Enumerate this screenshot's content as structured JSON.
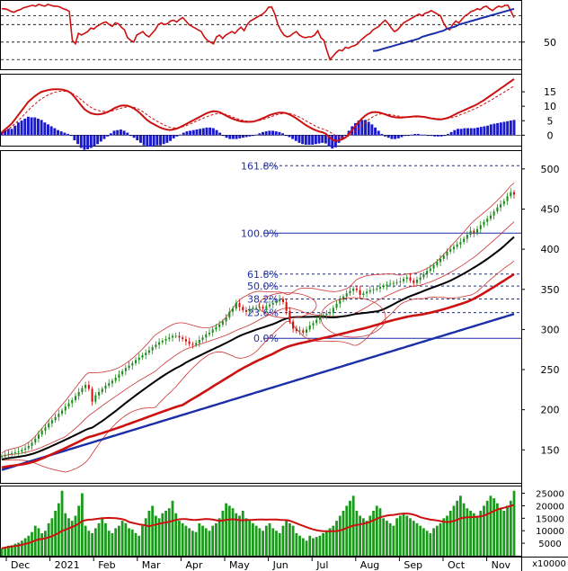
{
  "chart_data": [
    {
      "panel": "rsi",
      "type": "line",
      "ytick_labels": [
        "50"
      ],
      "ytick_values": [
        50
      ],
      "ylim": [
        20,
        95
      ],
      "reference_levels": [
        80,
        70,
        50,
        30
      ],
      "series": [
        {
          "values": [
            88,
            88,
            87,
            85,
            84,
            86,
            87,
            89,
            90,
            91,
            92,
            91,
            93,
            92,
            91,
            93,
            92,
            91,
            91,
            90,
            88,
            87,
            85,
            52,
            48,
            60,
            58,
            60,
            62,
            66,
            65,
            68,
            70,
            72,
            73,
            70,
            68,
            72,
            71,
            67,
            64,
            55,
            52,
            50,
            58,
            60,
            62,
            58,
            56,
            60,
            64,
            70,
            72,
            70,
            71,
            74,
            75,
            73,
            76,
            78,
            74,
            70,
            68,
            66,
            64,
            62,
            56,
            52,
            50,
            48,
            56,
            58,
            54,
            58,
            60,
            62,
            60,
            64,
            67,
            63,
            70,
            74,
            76,
            78,
            80,
            82,
            85,
            90,
            90,
            82,
            70,
            63,
            58,
            56,
            57,
            60,
            62,
            58,
            56,
            55,
            56,
            56,
            58,
            63,
            55,
            52,
            40,
            30,
            34,
            38,
            41,
            40,
            44,
            43,
            45,
            46,
            48,
            52,
            55,
            58,
            60,
            64,
            66,
            68,
            72,
            75,
            71,
            66,
            62,
            64,
            68,
            72,
            74,
            76,
            78,
            80,
            82,
            80,
            83,
            84,
            86,
            84,
            82,
            80,
            72,
            66,
            64,
            70,
            74,
            72,
            76,
            80,
            82,
            85,
            86,
            88,
            87,
            90,
            91,
            88,
            86,
            89,
            91,
            90,
            92,
            92,
            85,
            78
          ]
        },
        {
          "values": [
            40,
            40,
            41,
            42,
            43,
            44,
            45,
            46,
            47,
            48,
            49,
            50,
            51,
            52,
            53,
            54,
            56,
            57,
            58,
            59,
            60,
            61,
            62,
            63,
            65,
            66,
            67,
            68,
            70,
            71,
            72,
            73,
            74,
            75,
            76,
            77,
            78,
            79,
            80,
            81,
            82,
            83,
            84,
            85,
            86,
            87,
            88
          ],
          "x_start": 121
        }
      ]
    },
    {
      "panel": "macd",
      "type": "line",
      "ytick_labels": [
        "15",
        "10",
        "5",
        "0"
      ],
      "ytick_values": [
        15,
        10,
        5,
        0
      ],
      "ylim": [
        -3,
        20
      ],
      "zero_line": 0,
      "series": [
        {
          "name_shown": false,
          "values": [
            1,
            2,
            3,
            4,
            5.5,
            7,
            8.5,
            10,
            11.5,
            12.5,
            13.5,
            14.3,
            15,
            15.3,
            15.6,
            15.8,
            15.9,
            15.9,
            15.8,
            15.6,
            15.2,
            14.5,
            13.2,
            11.8,
            10.3,
            9.0,
            8.2,
            7.6,
            7.3,
            7.2,
            7.3,
            7.6,
            8.0,
            8.6,
            9.3,
            9.8,
            10.2,
            10.3,
            10.2,
            9.8,
            9.2,
            8.4,
            7.4,
            6.3,
            5.2,
            4.4,
            3.8,
            3.2,
            2.6,
            2.2,
            1.9,
            1.8,
            2.0,
            2.3,
            2.8,
            3.4,
            4.0,
            4.6,
            5.2,
            5.8,
            6.4,
            7.0,
            7.6,
            8.0,
            8.3,
            8.2,
            7.9,
            7.3,
            6.7,
            6.1,
            5.6,
            5.2,
            4.9,
            4.7,
            4.6,
            4.6,
            4.7,
            5.0,
            5.4,
            5.9,
            6.4,
            6.9,
            7.3,
            7.6,
            7.8,
            7.8,
            7.6,
            7.2,
            6.6,
            5.9,
            5.1,
            4.3,
            3.5,
            2.8,
            2.2,
            1.7,
            1.3,
            1.0,
            0.5,
            -0.5,
            -1.5,
            -2.0,
            -1.8,
            -1.4,
            -0.8,
            0.4,
            1.8,
            3.2,
            4.6,
            5.8,
            6.8,
            7.5,
            7.9,
            8.0,
            7.9,
            7.6,
            7.2,
            6.8,
            6.4,
            6.2,
            6.1,
            6.1,
            6.2,
            6.3,
            6.4,
            6.5,
            6.5,
            6.4,
            6.3,
            6.0,
            5.8,
            5.6,
            5.5,
            5.5,
            5.7,
            6.0,
            6.5,
            7.1,
            7.7,
            8.2,
            8.7,
            9.2,
            9.7,
            10.2,
            10.8,
            11.5,
            12.2,
            13.0,
            13.8,
            14.6,
            15.4,
            16.2,
            17.0,
            17.8,
            18.6,
            19.4
          ]
        },
        {
          "name_shown": false,
          "values": [
            0.5,
            1.2,
            2,
            3,
            4,
            5,
            6.2,
            7.4,
            8.6,
            9.7,
            10.7,
            11.7,
            12.6,
            13.3,
            13.9,
            14.4,
            14.8,
            15.1,
            15.2,
            15.2,
            15.0,
            14.6,
            14.0,
            13.2,
            12.3,
            11.3,
            10.4,
            9.6,
            9.0,
            8.6,
            8.3,
            8.2,
            8.2,
            8.3,
            8.6,
            9.0,
            9.3,
            9.6,
            9.8,
            9.8,
            9.6,
            9.2,
            8.6,
            7.9,
            7.0,
            6.2,
            5.5,
            4.8,
            4.2,
            3.6,
            3.1,
            2.7,
            2.5,
            2.5,
            2.7,
            3.0,
            3.4,
            3.9,
            4.4,
            4.9,
            5.4,
            5.9,
            6.4,
            6.8,
            7.2,
            7.4,
            7.5,
            7.4,
            7.1,
            6.7,
            6.2,
            5.8,
            5.4,
            5.1,
            4.9,
            4.8,
            4.8,
            4.9,
            5.1,
            5.4,
            5.8,
            6.2,
            6.6,
            7.0,
            7.3,
            7.5,
            7.6,
            7.5,
            7.2,
            6.8,
            6.3,
            5.7,
            5.0,
            4.3,
            3.7,
            3.1,
            2.6,
            2.2,
            1.8,
            1.3,
            0.6,
            -0.1,
            -0.6,
            -0.8,
            -0.7,
            -0.3,
            0.4,
            1.3,
            2.3,
            3.4,
            4.4,
            5.4,
            6.2,
            6.8,
            7.2,
            7.4,
            7.4,
            7.2,
            7.0,
            6.8,
            6.6,
            6.4,
            6.3,
            6.3,
            6.3,
            6.3,
            6.3,
            6.3,
            6.2,
            6.1,
            5.9,
            5.8,
            5.7,
            5.7,
            5.7,
            5.8,
            6.0,
            6.3,
            6.7,
            7.2,
            7.6,
            8.1,
            8.6,
            9.1,
            9.6,
            10.2,
            10.8,
            11.5,
            12.1,
            12.8,
            13.5,
            14.2,
            14.9,
            15.6,
            16.3,
            17.0
          ]
        }
      ]
    },
    {
      "panel": "price",
      "type": "candlestick",
      "ytick_labels": [
        "500",
        "450",
        "400",
        "350",
        "300",
        "250",
        "200",
        "150"
      ],
      "ytick_values": [
        500,
        450,
        400,
        350,
        300,
        250,
        200,
        150
      ],
      "ylim": [
        110,
        520
      ],
      "fibonacci": [
        {
          "label": "161.8%",
          "value": 504
        },
        {
          "label": "100.0%",
          "value": 420
        },
        {
          "label": "61.8%",
          "value": 369
        },
        {
          "label": "50.0%",
          "value": 354
        },
        {
          "label": "38.2%",
          "value": 338
        },
        {
          "label": "23.6%",
          "value": 321
        },
        {
          "label": "0.0%",
          "value": 289
        }
      ],
      "close": [
        142,
        144,
        145,
        146,
        147,
        148,
        150,
        152,
        155,
        159,
        164,
        169,
        174,
        178,
        183,
        187,
        191,
        195,
        199,
        204,
        208,
        212,
        217,
        222,
        227,
        231,
        226,
        210,
        218,
        222,
        226,
        230,
        233,
        236,
        240,
        244,
        248,
        252,
        255,
        258,
        262,
        265,
        268,
        271,
        274,
        278,
        281,
        284,
        286,
        288,
        290,
        292,
        292,
        290,
        288,
        285,
        282,
        281,
        283,
        287,
        290,
        294,
        296,
        300,
        303,
        306,
        310,
        315,
        322,
        326,
        333,
        328,
        324,
        322,
        325,
        327,
        327,
        328,
        326,
        329,
        331,
        333,
        335,
        338,
        334,
        323,
        310,
        301,
        298,
        299,
        296,
        300,
        305,
        308,
        312,
        316,
        318,
        320,
        321,
        327,
        332,
        337,
        341,
        345,
        348,
        351,
        349,
        343,
        345,
        347,
        349,
        350,
        351,
        353,
        354,
        356,
        357,
        358,
        359,
        360,
        363,
        365,
        361,
        358,
        362,
        365,
        369,
        373,
        376,
        380,
        384,
        388,
        392,
        397,
        400,
        403,
        406,
        409,
        413,
        418,
        423,
        420,
        425,
        430,
        434,
        438,
        442,
        447,
        452,
        456,
        460,
        466,
        471,
        468
      ]
    },
    {
      "panel": "volume",
      "type": "bar",
      "ytick_labels": [
        "25000",
        "20000",
        "15000",
        "10000",
        "5000"
      ],
      "ytick_values": [
        25000,
        20000,
        15000,
        10000,
        5000
      ],
      "ylim": [
        0,
        27000
      ],
      "scale_note": "x10000",
      "values": [
        3000,
        3500,
        4000,
        4200,
        4800,
        5200,
        6000,
        7000,
        8000,
        9500,
        12000,
        11000,
        9000,
        10000,
        13000,
        15000,
        18000,
        21000,
        26000,
        17000,
        15000,
        14000,
        16000,
        20000,
        25000,
        12000,
        10000,
        9000,
        11000,
        13000,
        15000,
        13000,
        10000,
        9000,
        11000,
        12000,
        14000,
        13000,
        11000,
        10500,
        9000,
        8000,
        12000,
        15000,
        18000,
        20000,
        16000,
        15000,
        17000,
        18000,
        19000,
        22000,
        17000,
        14000,
        13000,
        12000,
        11000,
        10000,
        9500,
        13000,
        12000,
        11000,
        10000,
        12000,
        13000,
        15000,
        18000,
        21000,
        20000,
        19000,
        17000,
        16000,
        18000,
        15000,
        14000,
        13000,
        12000,
        11000,
        10000,
        12000,
        13000,
        11000,
        10000,
        9000,
        12000,
        14000,
        13000,
        12000,
        9000,
        8000,
        7000,
        6000,
        8000,
        7000,
        7500,
        8000,
        9000,
        10000,
        11000,
        12000,
        14000,
        16000,
        18000,
        20000,
        22000,
        24000,
        18000,
        16000,
        15000,
        14000,
        16000,
        18000,
        20000,
        19000,
        15000,
        14000,
        13000,
        12000,
        15000,
        16000,
        17000,
        16000,
        15000,
        14000,
        13000,
        12000,
        11000,
        10000,
        9000,
        11000,
        12000,
        13000,
        15000,
        16000,
        18000,
        20000,
        22000,
        24000,
        21000,
        19000,
        18000,
        17000,
        16000,
        18000,
        20000,
        22000,
        24000,
        23000,
        21000,
        19000,
        18000,
        20000,
        22000,
        26000
      ]
    }
  ],
  "x_axis": {
    "labels": [
      "Dec",
      "2021",
      "Feb",
      "Mar",
      "Apr",
      "May",
      "Jun",
      "Jul",
      "Aug",
      "Sep",
      "Oct",
      "Nov"
    ]
  },
  "colors": {
    "up_candle": "#1a8a1a",
    "down_candle": "#cc1111",
    "rsi_line": "#cc1111",
    "trendline": "#1a2fa8",
    "macd_line": "#cc1111",
    "macd_signal": "#cc1111",
    "histogram": "#1a1acc",
    "ma_short": "#000000",
    "ma_mid": "#cc1111",
    "ma_long": "#1a2fa8",
    "bollinger": "#cc3333",
    "fib_line": "#1a2fa8",
    "fib_text": "#1f2f9f",
    "volume_bar": "#1a9a1a",
    "volume_ma": "#cc1111",
    "grid": "#000000"
  }
}
